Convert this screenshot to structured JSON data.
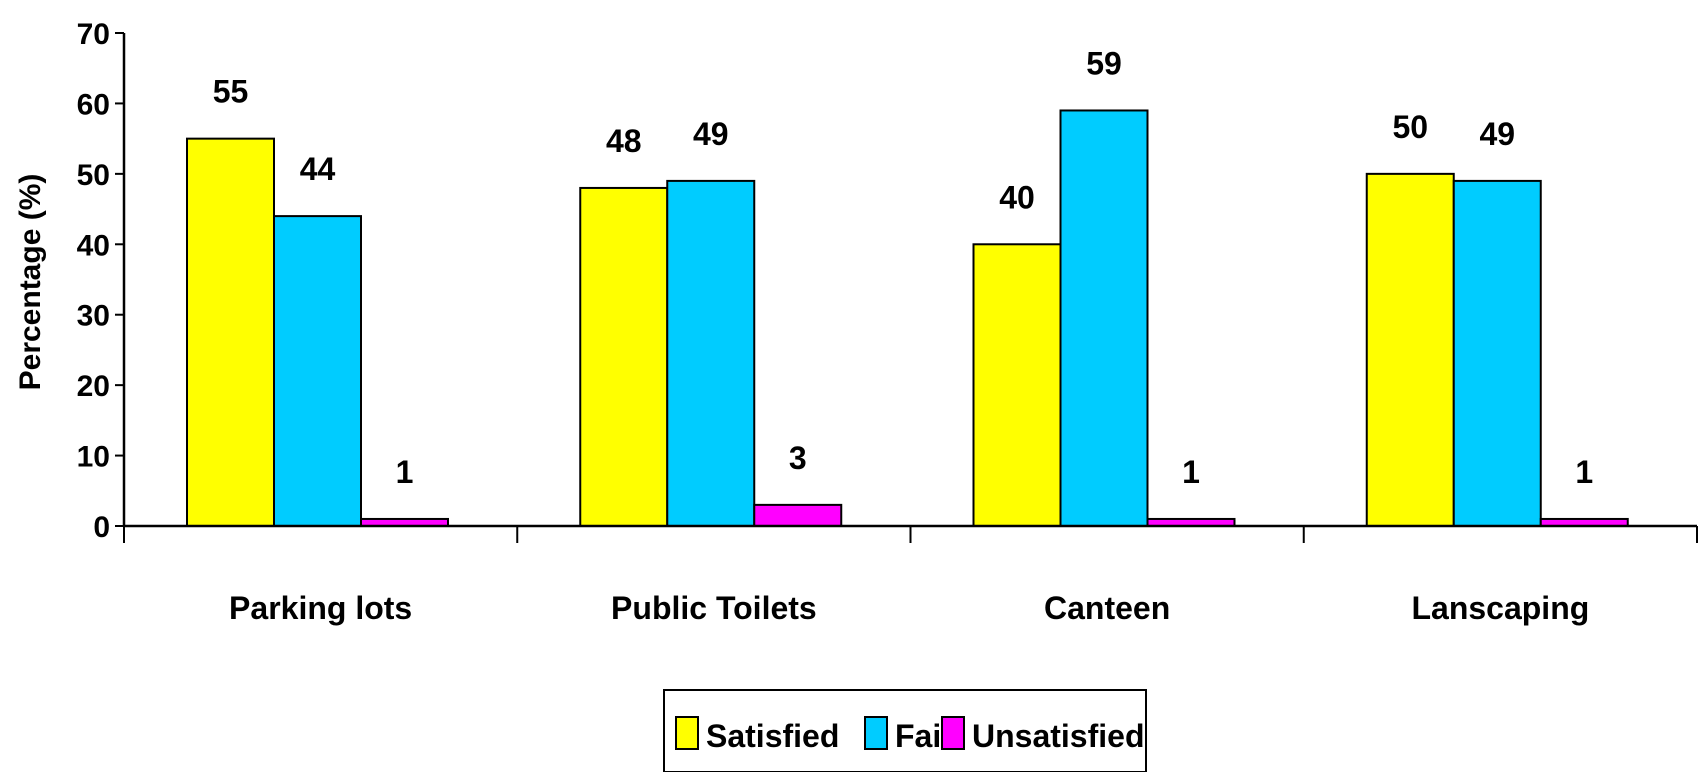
{
  "chart_data": {
    "type": "bar",
    "categories": [
      "Parking lots",
      "Public Toilets",
      "Canteen",
      "Lanscaping"
    ],
    "series": [
      {
        "name": "Satisfied",
        "values": [
          55,
          48,
          40,
          50
        ],
        "color": "#FFFF00"
      },
      {
        "name": "Fair",
        "values": [
          44,
          49,
          59,
          49
        ],
        "color": "#00CCFF"
      },
      {
        "name": "Unsatisfied",
        "values": [
          1,
          3,
          1,
          1
        ],
        "color": "#FF00FF"
      }
    ],
    "title": "",
    "xlabel": "",
    "ylabel": "Percentage (%)",
    "ylim": [
      0,
      70
    ],
    "yticks": [
      0,
      10,
      20,
      30,
      40,
      50,
      60,
      70
    ],
    "grid": false,
    "legend_position": "bottom-center",
    "data_labels": true
  }
}
